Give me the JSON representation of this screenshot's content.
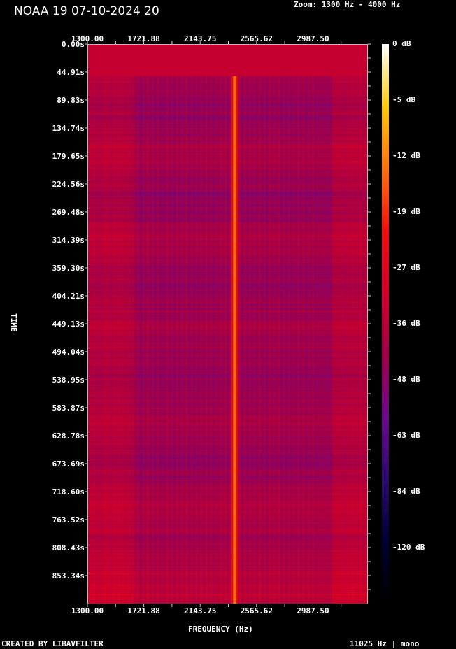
{
  "title": "NOAA 19 07-10-2024 20",
  "zoom_label": "Zoom: 1300 Hz - 4000 Hz",
  "footer_left": "CREATED BY LIBAVFILTER",
  "footer_right": "11025 Hz | mono",
  "chart_data": {
    "type": "heatmap",
    "xlabel": "FREQUENCY (Hz)",
    "ylabel": "TIME",
    "x_ticks": [
      "1300.00",
      "1721.88",
      "2143.75",
      "2565.62",
      "2987.50"
    ],
    "y_ticks": [
      "0.00s",
      "44.91s",
      "89.83s",
      "134.74s",
      "179.65s",
      "224.56s",
      "269.48s",
      "314.39s",
      "359.30s",
      "404.21s",
      "449.13s",
      "494.04s",
      "538.95s",
      "583.87s",
      "628.78s",
      "673.69s",
      "718.60s",
      "763.52s",
      "808.43s",
      "853.34s"
    ],
    "colorbar_ticks": [
      "0 dB",
      "-5 dB",
      "-12 dB",
      "-19 dB",
      "-27 dB",
      "-36 dB",
      "-48 dB",
      "-63 dB",
      "-84 dB",
      "-120 dB"
    ],
    "colormap": [
      "#000000",
      "#000033",
      "#2a0a6a",
      "#6a0a8a",
      "#a0004a",
      "#d0002a",
      "#ee1010",
      "#ff7010",
      "#ffc810",
      "#ffffff"
    ],
    "carrier_frequency_hz": 2400,
    "carrier_start_s": 40
  }
}
